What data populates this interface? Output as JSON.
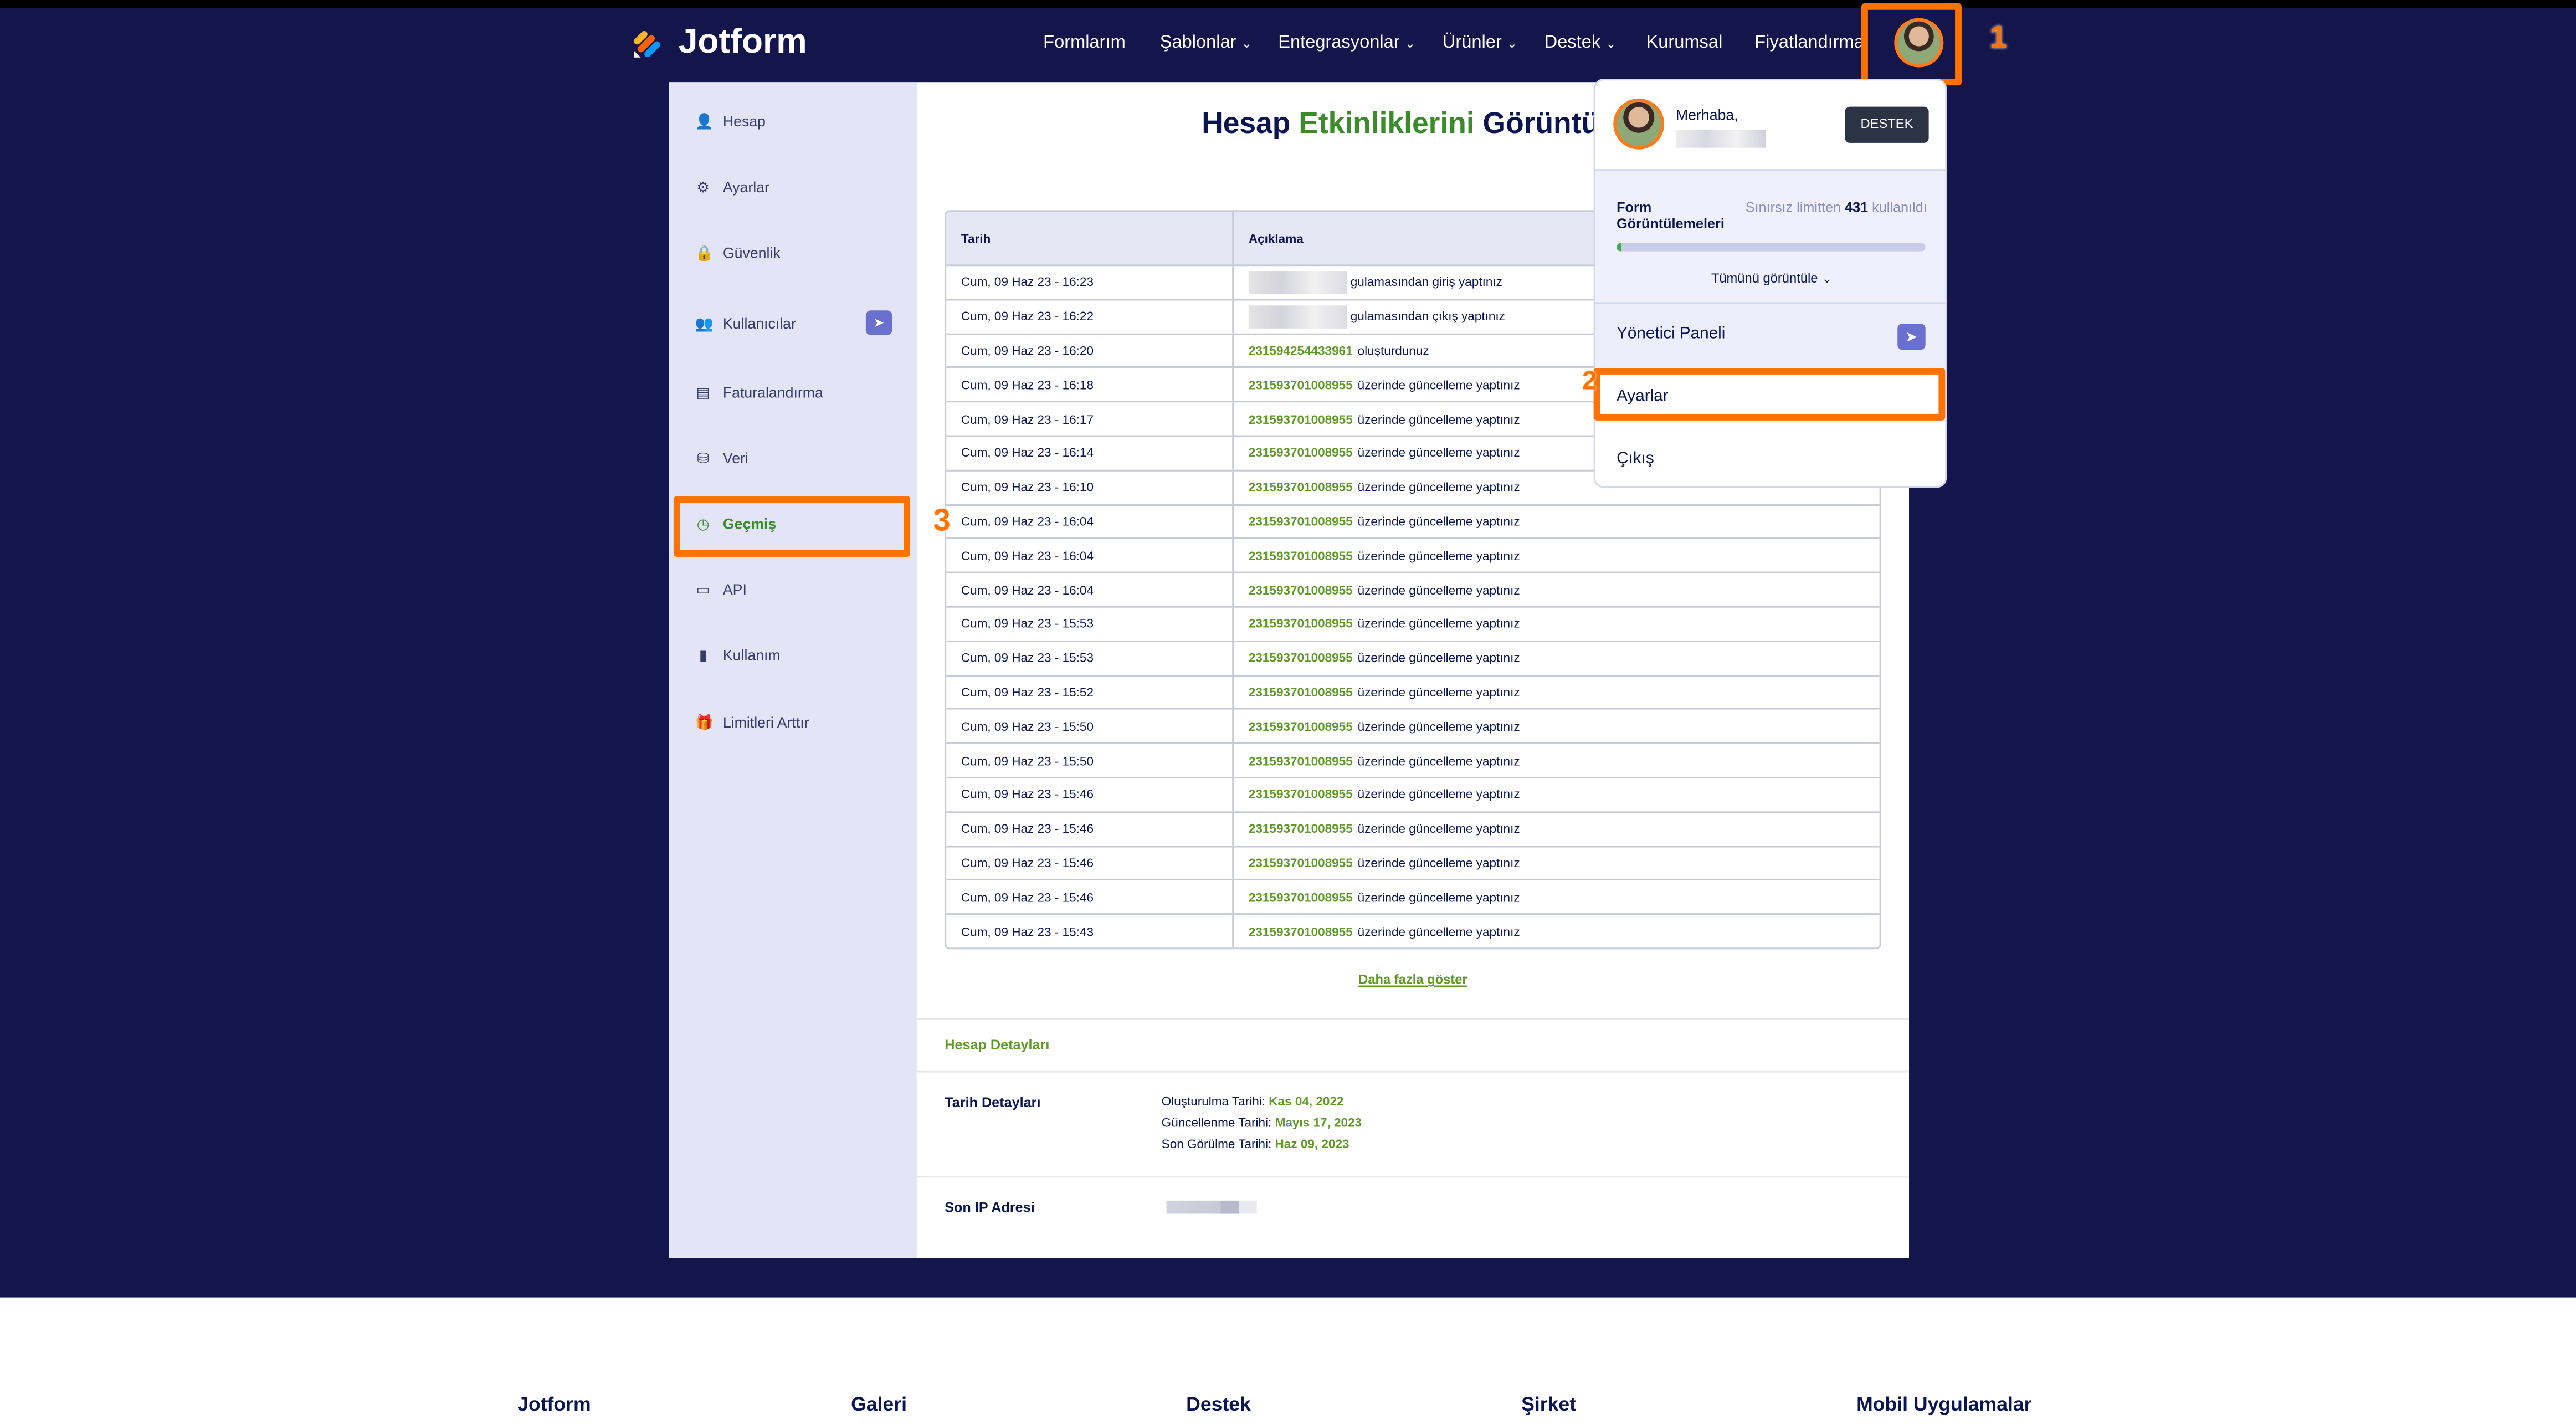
{
  "header": {
    "brand": "Jotform",
    "nav": [
      {
        "label": "Formlarım",
        "chevron": false
      },
      {
        "label": "Şablonlar",
        "chevron": true
      },
      {
        "label": "Entegrasyonlar",
        "chevron": true
      },
      {
        "label": "Ürünler",
        "chevron": true
      },
      {
        "label": "Destek",
        "chevron": true
      },
      {
        "label": "Kurumsal",
        "chevron": false
      },
      {
        "label": "Fiyatlandırma",
        "chevron": false
      }
    ]
  },
  "annotations": [
    "1",
    "2",
    "3"
  ],
  "sidebar": {
    "items": [
      {
        "label": "Hesap",
        "icon": "user-icon"
      },
      {
        "label": "Ayarlar",
        "icon": "gear-icon"
      },
      {
        "label": "Güvenlik",
        "icon": "lock-icon"
      },
      {
        "label": "Kullanıcılar",
        "icon": "users-icon"
      },
      {
        "label": "Faturalandırma",
        "icon": "invoice-icon"
      },
      {
        "label": "Veri",
        "icon": "database-icon"
      },
      {
        "label": "Geçmiş",
        "icon": "history-icon",
        "active": true
      },
      {
        "label": "API",
        "icon": "api-icon"
      },
      {
        "label": "Kullanım",
        "icon": "bar-chart-icon"
      },
      {
        "label": "Limitleri Arttır",
        "icon": "gift-icon"
      }
    ]
  },
  "main": {
    "title_a": "Hesap ",
    "title_b": "Etkinliklerini",
    "title_c": " Görüntüle",
    "table": {
      "headers": [
        "Tarih",
        "Açıklama"
      ],
      "rows": [
        {
          "date": "Cum, 09 Haz 23 - 16:23",
          "id": "",
          "text": "gulamasından giriş yaptınız",
          "blurred": true
        },
        {
          "date": "Cum, 09 Haz 23 - 16:22",
          "id": "",
          "text": "gulamasından çıkış yaptınız",
          "blurred": true
        },
        {
          "date": "Cum, 09 Haz 23 - 16:20",
          "id": "231594254433961",
          "text": "oluşturdunuz"
        },
        {
          "date": "Cum, 09 Haz 23 - 16:18",
          "id": "231593701008955",
          "text": "üzerinde güncelleme yaptınız"
        },
        {
          "date": "Cum, 09 Haz 23 - 16:17",
          "id": "231593701008955",
          "text": "üzerinde güncelleme yaptınız"
        },
        {
          "date": "Cum, 09 Haz 23 - 16:14",
          "id": "231593701008955",
          "text": "üzerinde güncelleme yaptınız"
        },
        {
          "date": "Cum, 09 Haz 23 - 16:10",
          "id": "231593701008955",
          "text": "üzerinde güncelleme yaptınız"
        },
        {
          "date": "Cum, 09 Haz 23 - 16:04",
          "id": "231593701008955",
          "text": "üzerinde güncelleme yaptınız"
        },
        {
          "date": "Cum, 09 Haz 23 - 16:04",
          "id": "231593701008955",
          "text": "üzerinde güncelleme yaptınız"
        },
        {
          "date": "Cum, 09 Haz 23 - 16:04",
          "id": "231593701008955",
          "text": "üzerinde güncelleme yaptınız"
        },
        {
          "date": "Cum, 09 Haz 23 - 15:53",
          "id": "231593701008955",
          "text": "üzerinde güncelleme yaptınız"
        },
        {
          "date": "Cum, 09 Haz 23 - 15:53",
          "id": "231593701008955",
          "text": "üzerinde güncelleme yaptınız"
        },
        {
          "date": "Cum, 09 Haz 23 - 15:52",
          "id": "231593701008955",
          "text": "üzerinde güncelleme yaptınız"
        },
        {
          "date": "Cum, 09 Haz 23 - 15:50",
          "id": "231593701008955",
          "text": "üzerinde güncelleme yaptınız"
        },
        {
          "date": "Cum, 09 Haz 23 - 15:50",
          "id": "231593701008955",
          "text": "üzerinde güncelleme yaptınız"
        },
        {
          "date": "Cum, 09 Haz 23 - 15:46",
          "id": "231593701008955",
          "text": "üzerinde güncelleme yaptınız"
        },
        {
          "date": "Cum, 09 Haz 23 - 15:46",
          "id": "231593701008955",
          "text": "üzerinde güncelleme yaptınız"
        },
        {
          "date": "Cum, 09 Haz 23 - 15:46",
          "id": "231593701008955",
          "text": "üzerinde güncelleme yaptınız"
        },
        {
          "date": "Cum, 09 Haz 23 - 15:46",
          "id": "231593701008955",
          "text": "üzerinde güncelleme yaptınız"
        },
        {
          "date": "Cum, 09 Haz 23 - 15:43",
          "id": "231593701008955",
          "text": "üzerinde güncelleme yaptınız"
        }
      ]
    },
    "more": "Daha fazla göster",
    "details": {
      "section": "Hesap Detayları",
      "dates_label": "Tarih Detayları",
      "dates": [
        {
          "k": "Oluşturulma Tarihi: ",
          "v": "Kas 04, 2022"
        },
        {
          "k": "Güncellenme Tarihi: ",
          "v": "Mayıs 17, 2023"
        },
        {
          "k": "Son Görülme Tarihi: ",
          "v": "Haz 09, 2023"
        }
      ],
      "ip_label": "Son IP Adresi"
    }
  },
  "dropdown": {
    "greeting": "Merhaba,",
    "support": "DESTEK",
    "usage_title": "Form Görüntülemeleri",
    "usage_pre": "Sınırsız limitten ",
    "usage_count": "431",
    "usage_post": " kullanıldı",
    "usage_fraction": 0.01,
    "view_all": "Tümünü görüntüle",
    "admin": "Yönetici Paneli",
    "settings": "Ayarlar",
    "logout": "Çıkış"
  },
  "footer": {
    "columns": [
      "Jotform",
      "Galeri",
      "Destek",
      "Şirket",
      "Mobil Uygulamalar"
    ]
  },
  "colors": {
    "navy": "#14154b",
    "green": "#3a8b2a",
    "highlight": "#ff7200"
  }
}
